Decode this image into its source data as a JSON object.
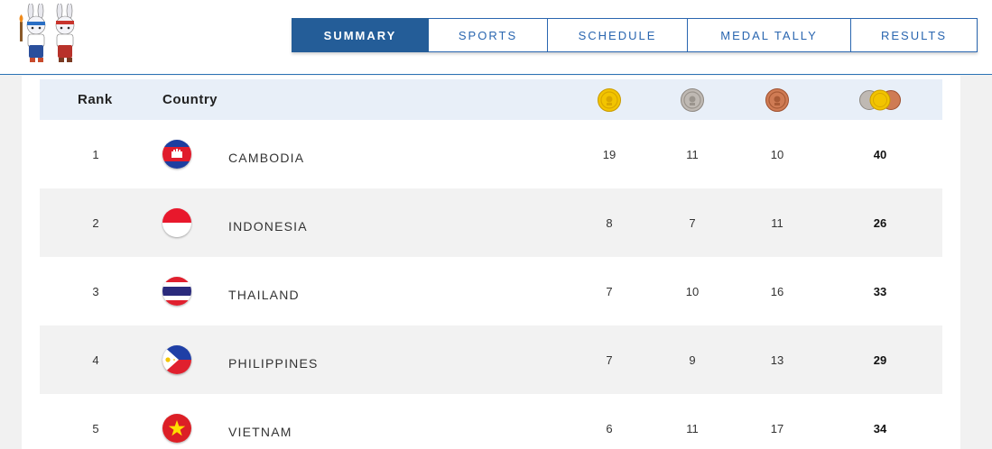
{
  "nav": {
    "tabs": [
      {
        "label": "SUMMARY",
        "active": true
      },
      {
        "label": "SPORTS",
        "active": false
      },
      {
        "label": "SCHEDULE",
        "active": false
      },
      {
        "label": "MEDAL TALLY",
        "active": false
      },
      {
        "label": "RESULTS",
        "active": false
      }
    ]
  },
  "table": {
    "headers": {
      "rank": "Rank",
      "country": "Country",
      "gold_icon": "gold-medal-icon",
      "silver_icon": "silver-medal-icon",
      "bronze_icon": "bronze-medal-icon",
      "total_icon": "total-medals-icon"
    },
    "rows": [
      {
        "rank": "1",
        "flag": "cambodia-flag-icon",
        "country": "CAMBODIA",
        "gold": "19",
        "silver": "11",
        "bronze": "10",
        "total": "40"
      },
      {
        "rank": "2",
        "flag": "indonesia-flag-icon",
        "country": "INDONESIA",
        "gold": "8",
        "silver": "7",
        "bronze": "11",
        "total": "26"
      },
      {
        "rank": "3",
        "flag": "thailand-flag-icon",
        "country": "THAILAND",
        "gold": "7",
        "silver": "10",
        "bronze": "16",
        "total": "33"
      },
      {
        "rank": "4",
        "flag": "philippines-flag-icon",
        "country": "PHILIPPINES",
        "gold": "7",
        "silver": "9",
        "bronze": "13",
        "total": "29"
      },
      {
        "rank": "5",
        "flag": "vietnam-flag-icon",
        "country": "VIETNAM",
        "gold": "6",
        "silver": "11",
        "bronze": "17",
        "total": "34"
      }
    ]
  },
  "colors": {
    "accent": "#245d98",
    "nav_border": "#2a66b0",
    "header_row_bg": "#e8eff8",
    "alt_row_bg": "#f2f2f2",
    "gold": "#f2c400",
    "silver": "#b9b3ad",
    "bronze": "#c8734e"
  }
}
